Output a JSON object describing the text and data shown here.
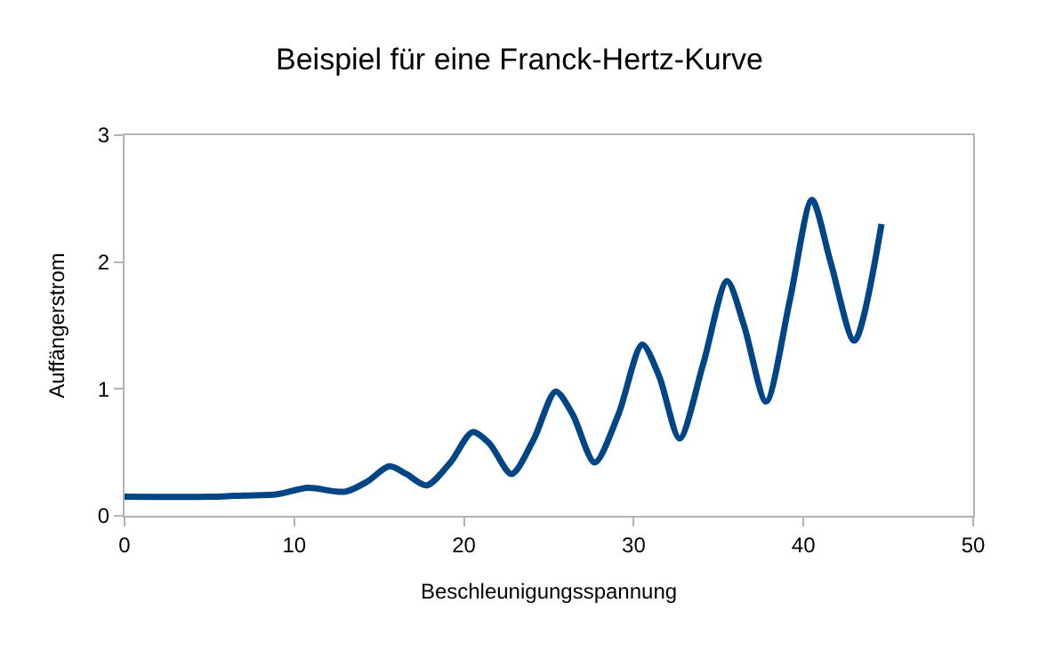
{
  "chart_data": {
    "type": "line",
    "title": "Beispiel für eine Franck-Hertz-Kurve",
    "xlabel": "Beschleunigungsspannung",
    "ylabel": "Auffängerstrom",
    "x": [
      0,
      5,
      7,
      9,
      10.8,
      13.0,
      14.3,
      15.6,
      16.6,
      17.8,
      19.2,
      20.5,
      21.5,
      22.8,
      24.1,
      25.4,
      26.4,
      27.7,
      29.1,
      30.5,
      31.5,
      32.7,
      34.1,
      35.5,
      36.5,
      37.8,
      39.2,
      40.5,
      41.6,
      43.0,
      44.6
    ],
    "series": [
      {
        "color": "#004586",
        "values": [
          0.15,
          0.15,
          0.16,
          0.17,
          0.22,
          0.19,
          0.27,
          0.39,
          0.33,
          0.24,
          0.42,
          0.66,
          0.57,
          0.33,
          0.6,
          0.98,
          0.8,
          0.42,
          0.8,
          1.35,
          1.1,
          0.61,
          1.2,
          1.85,
          1.5,
          0.9,
          1.7,
          2.49,
          2.0,
          1.38,
          2.3
        ]
      }
    ],
    "xlim": [
      0,
      50
    ],
    "xticks": [
      0,
      10,
      20,
      30,
      40,
      50
    ],
    "ylim": [
      0,
      3
    ],
    "yticks": [
      0,
      1,
      2,
      3
    ],
    "grid": false,
    "marker": "none",
    "line_style": "solid"
  }
}
